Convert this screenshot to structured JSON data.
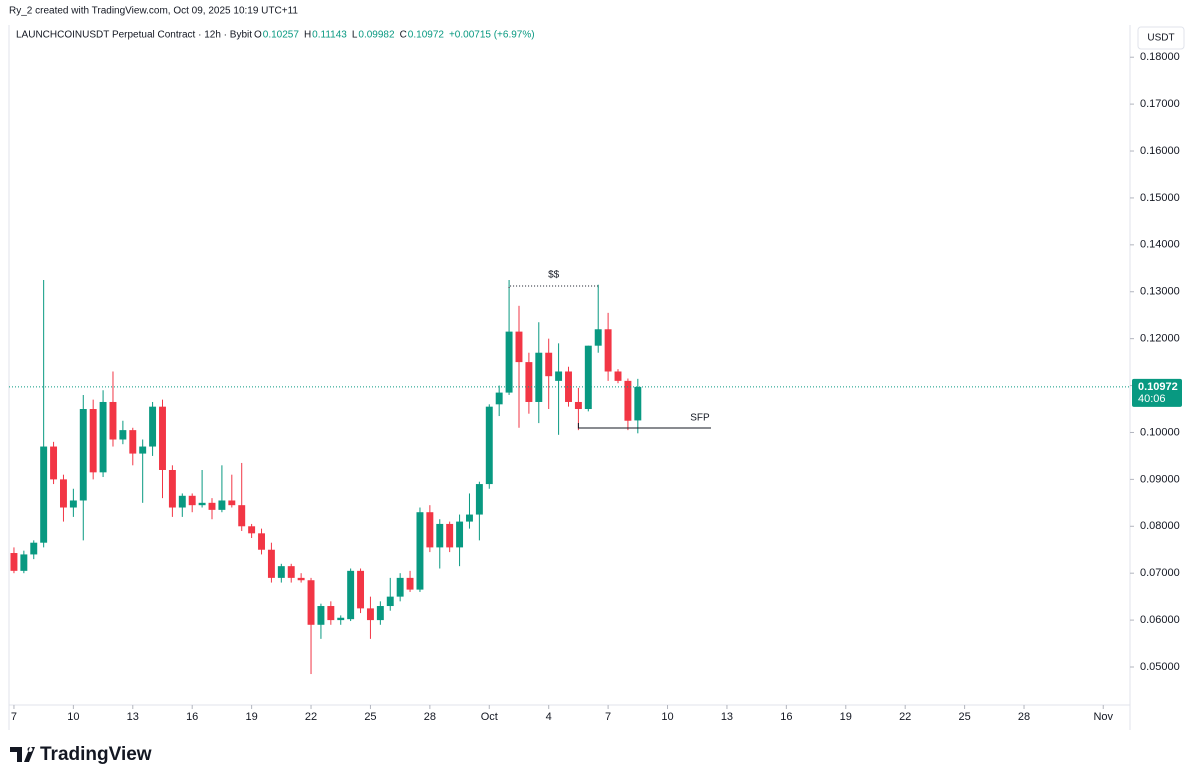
{
  "chart_data": {
    "type": "candlestick",
    "credit": "Ry_2 created with TradingView.com, Oct 09, 2025 10:19 UTC+11",
    "title": "LAUNCHCOINUSDT Perpetual Contract · 12h · Bybit",
    "ohlc_labels": [
      "O",
      "H",
      "L",
      "C"
    ],
    "change": "+0.00715 (+6.97%)",
    "currency": "USDT",
    "countdown": "40:06",
    "brand": "TradingView",
    "annotations": [
      "$$",
      "SFP"
    ],
    "up_color": "#089981",
    "down_color": "#f23645",
    "open": [
      0.0743,
      0.0705,
      0.074,
      0.0765,
      0.097,
      0.09,
      0.084,
      0.0855,
      0.105,
      0.0915,
      0.1065,
      0.0985,
      0.1005,
      0.0955,
      0.097,
      0.1055,
      0.092,
      0.084,
      0.0865,
      0.0845,
      0.085,
      0.0835,
      0.0855,
      0.0845,
      0.08,
      0.0785,
      0.075,
      0.069,
      0.0715,
      0.069,
      0.0685,
      0.059,
      0.063,
      0.06,
      0.0602,
      0.0705,
      0.0625,
      0.06,
      0.063,
      0.065,
      0.069,
      0.0665,
      0.083,
      0.0755,
      0.0805,
      0.0755,
      0.081,
      0.0825,
      0.089,
      0.106,
      0.1085,
      0.1215,
      0.115,
      0.1065,
      0.117,
      0.111,
      0.113,
      0.1065,
      0.105,
      0.1185,
      0.122,
      0.113,
      0.111,
      0.10257
    ],
    "high": [
      0.0755,
      0.0748,
      0.077,
      0.1325,
      0.098,
      0.091,
      0.088,
      0.108,
      0.107,
      0.109,
      0.113,
      0.1025,
      0.101,
      0.0985,
      0.1065,
      0.107,
      0.093,
      0.087,
      0.087,
      0.092,
      0.086,
      0.093,
      0.091,
      0.0935,
      0.0805,
      0.0795,
      0.0765,
      0.072,
      0.072,
      0.07,
      0.069,
      0.0635,
      0.064,
      0.061,
      0.071,
      0.071,
      0.065,
      0.064,
      0.069,
      0.07,
      0.0705,
      0.084,
      0.0845,
      0.0815,
      0.081,
      0.0825,
      0.087,
      0.0895,
      0.106,
      0.11,
      0.1325,
      0.127,
      0.117,
      0.1235,
      0.12,
      0.119,
      0.114,
      0.1095,
      0.1185,
      0.1315,
      0.1255,
      0.1135,
      0.1115,
      0.11143
    ],
    "low": [
      0.07,
      0.07,
      0.073,
      0.0755,
      0.089,
      0.081,
      0.082,
      0.077,
      0.09,
      0.0905,
      0.097,
      0.0975,
      0.093,
      0.085,
      0.095,
      0.086,
      0.082,
      0.082,
      0.083,
      0.084,
      0.0815,
      0.083,
      0.084,
      0.079,
      0.0775,
      0.074,
      0.068,
      0.068,
      0.068,
      0.068,
      0.0485,
      0.056,
      0.059,
      0.059,
      0.0598,
      0.0615,
      0.056,
      0.059,
      0.062,
      0.064,
      0.066,
      0.066,
      0.0745,
      0.071,
      0.0745,
      0.0715,
      0.0795,
      0.077,
      0.088,
      0.1035,
      0.108,
      0.101,
      0.104,
      0.102,
      0.105,
      0.0995,
      0.1055,
      0.1005,
      0.1045,
      0.117,
      0.111,
      0.1105,
      0.1005,
      0.09982
    ],
    "close": [
      0.0705,
      0.074,
      0.0765,
      0.097,
      0.09,
      0.084,
      0.0855,
      0.105,
      0.0915,
      0.1065,
      0.0985,
      0.1005,
      0.0955,
      0.097,
      0.1055,
      0.092,
      0.084,
      0.0865,
      0.0845,
      0.085,
      0.0835,
      0.0855,
      0.0845,
      0.08,
      0.0785,
      0.075,
      0.069,
      0.0715,
      0.069,
      0.0685,
      0.059,
      0.063,
      0.06,
      0.0605,
      0.0705,
      0.0625,
      0.06,
      0.063,
      0.065,
      0.069,
      0.0665,
      0.083,
      0.0755,
      0.0805,
      0.0755,
      0.081,
      0.0825,
      0.089,
      0.1055,
      0.1085,
      0.1215,
      0.115,
      0.1065,
      0.117,
      0.112,
      0.113,
      0.1065,
      0.105,
      0.1185,
      0.122,
      0.113,
      0.111,
      0.1025,
      0.10972
    ],
    "xlim": [
      -0.5,
      112.5
    ],
    "xticks": [
      {
        "value": 0,
        "label": "7"
      },
      {
        "value": 6,
        "label": "10"
      },
      {
        "value": 12,
        "label": "13"
      },
      {
        "value": 18,
        "label": "16"
      },
      {
        "value": 24,
        "label": "19"
      },
      {
        "value": 30,
        "label": "22"
      },
      {
        "value": 36,
        "label": "25"
      },
      {
        "value": 42,
        "label": "28"
      },
      {
        "value": 48,
        "label": "Oct"
      },
      {
        "value": 54,
        "label": "4"
      },
      {
        "value": 60,
        "label": "7"
      },
      {
        "value": 66,
        "label": "10"
      },
      {
        "value": 72,
        "label": "13"
      },
      {
        "value": 78,
        "label": "16"
      },
      {
        "value": 84,
        "label": "19"
      },
      {
        "value": 90,
        "label": "22"
      },
      {
        "value": 96,
        "label": "25"
      },
      {
        "value": 102,
        "label": "28"
      },
      {
        "value": 110,
        "label": "Nov"
      }
    ],
    "ylim": [
      0.0419,
      0.1858
    ],
    "yticks": [
      {
        "value": 0.05,
        "label": "0.05000"
      },
      {
        "value": 0.06,
        "label": "0.06000"
      },
      {
        "value": 0.07,
        "label": "0.07000"
      },
      {
        "value": 0.08,
        "label": "0.08000"
      },
      {
        "value": 0.09,
        "label": "0.09000"
      },
      {
        "value": 0.1,
        "label": "0.10000"
      },
      {
        "value": 0.11,
        "label": "0.11000"
      },
      {
        "value": 0.12,
        "label": "0.12000"
      },
      {
        "value": 0.13,
        "label": "0.13000"
      },
      {
        "value": 0.14,
        "label": "0.14000"
      },
      {
        "value": 0.15,
        "label": "0.15000"
      },
      {
        "value": 0.16,
        "label": "0.16000"
      },
      {
        "value": 0.17,
        "label": "0.17000"
      },
      {
        "value": 0.18,
        "label": "0.18000"
      }
    ]
  }
}
